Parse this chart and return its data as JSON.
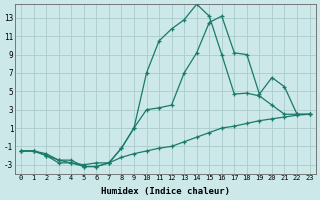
{
  "xlabel": "Humidex (Indice chaleur)",
  "bg_color": "#cce8e8",
  "grid_color": "#aacccc",
  "line_color": "#1a7a6a",
  "xlim": [
    -0.5,
    23.5
  ],
  "ylim": [
    -4,
    14.5
  ],
  "yticks": [
    -3,
    -1,
    1,
    3,
    5,
    7,
    9,
    11,
    13
  ],
  "xticks": [
    0,
    1,
    2,
    3,
    4,
    5,
    6,
    7,
    8,
    9,
    10,
    11,
    12,
    13,
    14,
    15,
    16,
    17,
    18,
    19,
    20,
    21,
    22,
    23
  ],
  "line1_x": [
    0,
    1,
    2,
    3,
    4,
    5,
    6,
    7,
    8,
    9,
    10,
    11,
    12,
    13,
    14,
    15,
    16,
    17,
    18,
    19,
    20,
    21,
    22,
    23
  ],
  "line1_y": [
    -1.5,
    -1.5,
    -2.0,
    -2.8,
    -2.8,
    -3.2,
    -3.2,
    -2.8,
    -1.2,
    1.0,
    7.0,
    10.5,
    11.8,
    12.8,
    14.5,
    13.2,
    9.0,
    4.7,
    4.8,
    4.5,
    3.5,
    2.5,
    2.5,
    2.5
  ],
  "line2_x": [
    0,
    1,
    2,
    3,
    4,
    5,
    6,
    7,
    8,
    9,
    10,
    11,
    12,
    13,
    14,
    15,
    16,
    17,
    18,
    19,
    20,
    21,
    22,
    23
  ],
  "line2_y": [
    -1.5,
    -1.5,
    -2.0,
    -2.5,
    -2.5,
    -3.2,
    -3.2,
    -2.8,
    -2.2,
    -1.8,
    -1.5,
    -1.2,
    -1.0,
    -0.5,
    0.0,
    0.5,
    1.0,
    1.2,
    1.5,
    1.8,
    2.0,
    2.2,
    2.4,
    2.5
  ],
  "line3_x": [
    0,
    1,
    2,
    3,
    4,
    5,
    6,
    7,
    8,
    9,
    10,
    11,
    12,
    13,
    14,
    15,
    16,
    17,
    18,
    19,
    20,
    21,
    22,
    23
  ],
  "line3_y": [
    -1.5,
    -1.5,
    -1.8,
    -2.5,
    -2.8,
    -3.0,
    -2.8,
    -2.8,
    -1.2,
    1.0,
    3.0,
    3.2,
    3.5,
    7.0,
    9.2,
    12.5,
    13.2,
    9.2,
    9.0,
    4.7,
    6.5,
    5.5,
    2.5,
    2.5
  ]
}
